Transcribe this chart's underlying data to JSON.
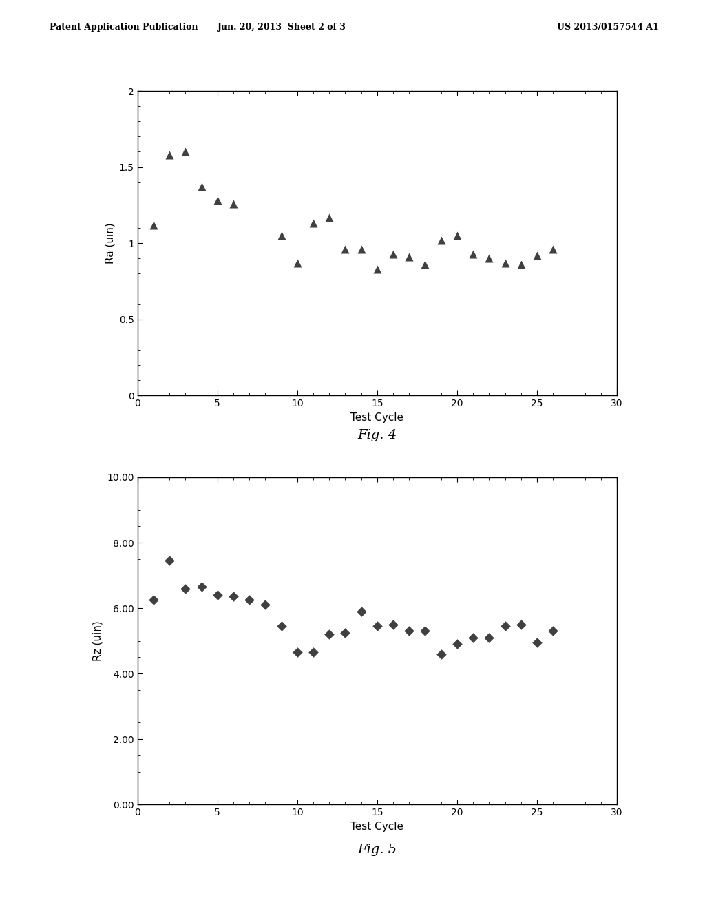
{
  "fig4": {
    "x": [
      1,
      2,
      3,
      4,
      5,
      6,
      9,
      10,
      11,
      12,
      13,
      14,
      15,
      16,
      17,
      18,
      19,
      20,
      21,
      22,
      23,
      24,
      25,
      26
    ],
    "y": [
      1.12,
      1.58,
      1.6,
      1.37,
      1.28,
      1.26,
      1.05,
      0.87,
      1.13,
      1.17,
      0.96,
      0.96,
      0.83,
      0.93,
      0.91,
      0.86,
      1.02,
      1.05,
      0.93,
      0.9,
      0.87,
      0.86,
      0.92,
      0.96
    ],
    "xlabel": "Test Cycle",
    "ylabel": "Ra (uin)",
    "xlim": [
      0,
      30
    ],
    "ylim": [
      0,
      2.0
    ],
    "yticks": [
      0,
      0.5,
      1.0,
      1.5,
      2.0
    ],
    "xticks": [
      0,
      5,
      10,
      15,
      20,
      25,
      30
    ],
    "fig_label": "Fig. 4"
  },
  "fig5": {
    "x": [
      1,
      2,
      3,
      4,
      5,
      6,
      7,
      8,
      9,
      10,
      11,
      12,
      13,
      14,
      15,
      16,
      17,
      18,
      19,
      20,
      21,
      22,
      23,
      24,
      25,
      26
    ],
    "y": [
      6.25,
      7.45,
      6.6,
      6.65,
      6.4,
      6.35,
      6.25,
      6.1,
      5.45,
      4.65,
      4.65,
      5.2,
      5.25,
      5.9,
      5.45,
      5.5,
      5.3,
      5.3,
      4.6,
      4.9,
      5.1,
      5.1,
      5.45,
      5.5,
      4.95,
      5.3
    ],
    "xlabel": "Test Cycle",
    "ylabel": "Rz (uin)",
    "xlim": [
      0,
      30
    ],
    "ylim": [
      0.0,
      10.0
    ],
    "yticks": [
      0.0,
      2.0,
      4.0,
      6.0,
      8.0,
      10.0
    ],
    "xticks": [
      0,
      5,
      10,
      15,
      20,
      25,
      30
    ],
    "fig_label": "Fig. 5"
  },
  "header_left": "Patent Application Publication",
  "header_mid": "Jun. 20, 2013  Sheet 2 of 3",
  "header_right": "US 2013/0157544 A1",
  "background_color": "#ffffff",
  "marker_color": "#404040",
  "text_color": "#000000",
  "header_fontsize": 9,
  "axis_label_fontsize": 11,
  "tick_fontsize": 10,
  "fig_label_fontsize": 14
}
